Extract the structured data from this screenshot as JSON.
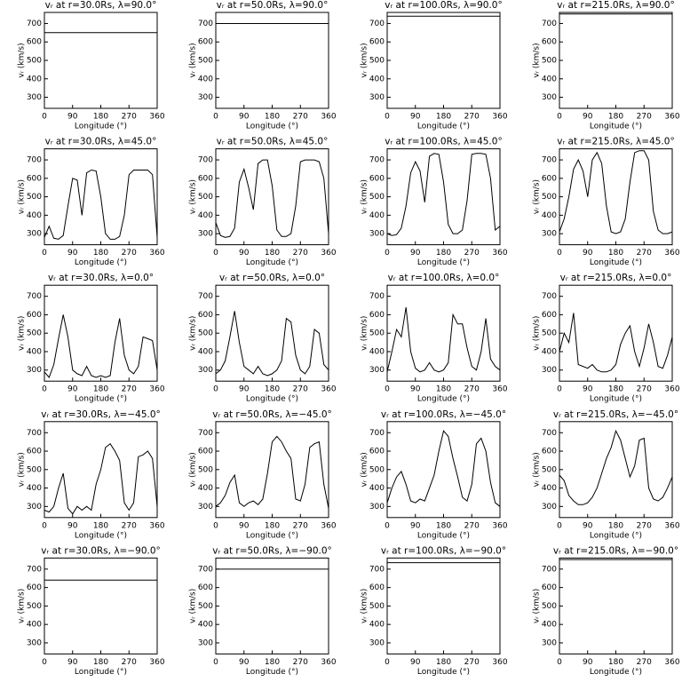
{
  "chart_data": [
    {
      "type": "line",
      "title": "vᵣ at r=30.0Rs, λ=90.0°",
      "xlabel": "Longitude (°)",
      "ylabel": "vᵣ (km/s)",
      "x": [
        0,
        360
      ],
      "values": [
        650,
        650
      ],
      "color": "#000000",
      "xlim": [
        0,
        360
      ],
      "ylim": [
        240,
        760
      ],
      "xticks": [
        0,
        90,
        180,
        270,
        360
      ],
      "yticks": [
        300,
        400,
        500,
        600,
        700
      ]
    },
    {
      "type": "line",
      "title": "vᵣ at r=50.0Rs, λ=90.0°",
      "xlabel": "Longitude (°)",
      "ylabel": "vᵣ (km/s)",
      "x": [
        0,
        360
      ],
      "values": [
        700,
        700
      ],
      "color": "#000000",
      "xlim": [
        0,
        360
      ],
      "ylim": [
        240,
        760
      ],
      "xticks": [
        0,
        90,
        180,
        270,
        360
      ],
      "yticks": [
        300,
        400,
        500,
        600,
        700
      ]
    },
    {
      "type": "line",
      "title": "vᵣ at r=100.0Rs, λ=90.0°",
      "xlabel": "Longitude (°)",
      "ylabel": "vᵣ (km/s)",
      "x": [
        0,
        360
      ],
      "values": [
        740,
        740
      ],
      "color": "#000000",
      "xlim": [
        0,
        360
      ],
      "ylim": [
        240,
        760
      ],
      "xticks": [
        0,
        90,
        180,
        270,
        360
      ],
      "yticks": [
        300,
        400,
        500,
        600,
        700
      ]
    },
    {
      "type": "line",
      "title": "vᵣ at r=215.0Rs, λ=90.0°",
      "xlabel": "Longitude (°)",
      "ylabel": "vᵣ (km/s)",
      "x": [
        0,
        360
      ],
      "values": [
        752,
        752
      ],
      "color": "#000000",
      "xlim": [
        0,
        360
      ],
      "ylim": [
        240,
        760
      ],
      "xticks": [
        0,
        90,
        180,
        270,
        360
      ],
      "yticks": [
        300,
        400,
        500,
        600,
        700
      ]
    },
    {
      "type": "line",
      "title": "vᵣ at r=30.0Rs, λ=45.0°",
      "xlabel": "Longitude (°)",
      "ylabel": "vᵣ (km/s)",
      "x": [
        0,
        15,
        30,
        45,
        60,
        75,
        90,
        105,
        120,
        135,
        150,
        165,
        180,
        195,
        210,
        225,
        240,
        255,
        270,
        285,
        300,
        315,
        330,
        345,
        360
      ],
      "values": [
        280,
        340,
        275,
        270,
        290,
        450,
        600,
        590,
        400,
        630,
        645,
        640,
        500,
        300,
        270,
        270,
        285,
        400,
        620,
        645,
        645,
        645,
        645,
        620,
        280
      ],
      "color": "#000000",
      "xlim": [
        0,
        360
      ],
      "ylim": [
        240,
        760
      ],
      "xticks": [
        0,
        90,
        180,
        270,
        360
      ],
      "yticks": [
        300,
        400,
        500,
        600,
        700
      ]
    },
    {
      "type": "line",
      "title": "vᵣ at r=50.0Rs, λ=45.0°",
      "xlabel": "Longitude (°)",
      "ylabel": "vᵣ (km/s)",
      "x": [
        0,
        15,
        30,
        45,
        60,
        75,
        90,
        105,
        120,
        135,
        150,
        165,
        180,
        195,
        210,
        225,
        240,
        255,
        270,
        285,
        300,
        315,
        330,
        345,
        360
      ],
      "values": [
        360,
        290,
        280,
        285,
        330,
        580,
        650,
        550,
        430,
        680,
        700,
        700,
        560,
        320,
        285,
        285,
        300,
        450,
        690,
        700,
        700,
        700,
        690,
        600,
        300
      ],
      "color": "#000000",
      "xlim": [
        0,
        360
      ],
      "ylim": [
        240,
        760
      ],
      "xticks": [
        0,
        90,
        180,
        270,
        360
      ],
      "yticks": [
        300,
        400,
        500,
        600,
        700
      ]
    },
    {
      "type": "line",
      "title": "vᵣ at r=100.0Rs, λ=45.0°",
      "xlabel": "Longitude (°)",
      "ylabel": "vᵣ (km/s)",
      "x": [
        0,
        15,
        30,
        45,
        60,
        75,
        90,
        105,
        120,
        135,
        150,
        165,
        180,
        195,
        210,
        225,
        240,
        255,
        270,
        285,
        300,
        315,
        330,
        345,
        360
      ],
      "values": [
        300,
        290,
        295,
        330,
        450,
        630,
        690,
        640,
        470,
        720,
        735,
        730,
        580,
        350,
        300,
        300,
        320,
        480,
        730,
        735,
        735,
        730,
        600,
        320,
        340
      ],
      "color": "#000000",
      "xlim": [
        0,
        360
      ],
      "ylim": [
        240,
        760
      ],
      "xticks": [
        0,
        90,
        180,
        270,
        360
      ],
      "yticks": [
        300,
        400,
        500,
        600,
        700
      ]
    },
    {
      "type": "line",
      "title": "vᵣ at r=215.0Rs, λ=45.0°",
      "xlabel": "Longitude (°)",
      "ylabel": "vᵣ (km/s)",
      "x": [
        0,
        15,
        30,
        45,
        60,
        75,
        90,
        105,
        120,
        135,
        150,
        165,
        180,
        195,
        210,
        225,
        240,
        255,
        270,
        285,
        300,
        315,
        330,
        345,
        360
      ],
      "values": [
        310,
        380,
        500,
        650,
        700,
        640,
        500,
        700,
        740,
        680,
        450,
        310,
        300,
        310,
        380,
        580,
        740,
        750,
        750,
        700,
        420,
        320,
        300,
        300,
        310
      ],
      "color": "#000000",
      "xlim": [
        0,
        360
      ],
      "ylim": [
        240,
        760
      ],
      "xticks": [
        0,
        90,
        180,
        270,
        360
      ],
      "yticks": [
        300,
        400,
        500,
        600,
        700
      ]
    },
    {
      "type": "line",
      "title": "vᵣ at r=30.0Rs, λ=0.0°",
      "xlabel": "Longitude (°)",
      "ylabel": "vᵣ (km/s)",
      "x": [
        0,
        15,
        30,
        45,
        60,
        75,
        90,
        105,
        120,
        135,
        150,
        165,
        180,
        195,
        210,
        225,
        240,
        255,
        270,
        285,
        300,
        315,
        330,
        345,
        360
      ],
      "values": [
        290,
        260,
        330,
        470,
        600,
        480,
        300,
        280,
        270,
        320,
        270,
        260,
        270,
        260,
        270,
        450,
        580,
        380,
        300,
        280,
        320,
        480,
        470,
        460,
        300
      ],
      "color": "#000000",
      "xlim": [
        0,
        360
      ],
      "ylim": [
        240,
        760
      ],
      "xticks": [
        0,
        90,
        180,
        270,
        360
      ],
      "yticks": [
        300,
        400,
        500,
        600,
        700
      ]
    },
    {
      "type": "line",
      "title": "vᵣ at r=50.0Rs, λ=0.0°",
      "xlabel": "Longitude (°)",
      "ylabel": "vᵣ (km/s)",
      "x": [
        0,
        15,
        30,
        45,
        60,
        75,
        90,
        105,
        120,
        135,
        150,
        165,
        180,
        195,
        210,
        225,
        240,
        255,
        270,
        285,
        300,
        315,
        330,
        345,
        360
      ],
      "values": [
        280,
        300,
        350,
        480,
        620,
        450,
        320,
        300,
        280,
        320,
        280,
        270,
        280,
        300,
        350,
        580,
        560,
        380,
        300,
        280,
        320,
        520,
        500,
        330,
        300
      ],
      "color": "#000000",
      "xlim": [
        0,
        360
      ],
      "ylim": [
        240,
        760
      ],
      "xticks": [
        0,
        90,
        180,
        270,
        360
      ],
      "yticks": [
        300,
        400,
        500,
        600,
        700
      ]
    },
    {
      "type": "line",
      "title": "vᵣ at r=100.0Rs, λ=0.0°",
      "xlabel": "Longitude (°)",
      "ylabel": "vᵣ (km/s)",
      "x": [
        0,
        15,
        30,
        45,
        60,
        75,
        90,
        105,
        120,
        135,
        150,
        165,
        180,
        195,
        210,
        225,
        240,
        255,
        270,
        285,
        300,
        315,
        330,
        345,
        360
      ],
      "values": [
        290,
        400,
        520,
        480,
        640,
        400,
        310,
        290,
        300,
        340,
        300,
        290,
        300,
        340,
        600,
        550,
        550,
        420,
        320,
        300,
        400,
        580,
        360,
        320,
        300
      ],
      "color": "#000000",
      "xlim": [
        0,
        360
      ],
      "ylim": [
        240,
        760
      ],
      "xticks": [
        0,
        90,
        180,
        270,
        360
      ],
      "yticks": [
        300,
        400,
        500,
        600,
        700
      ]
    },
    {
      "type": "line",
      "title": "vᵣ at r=215.0Rs, λ=0.0°",
      "xlabel": "Longitude (°)",
      "ylabel": "vᵣ (km/s)",
      "x": [
        0,
        15,
        30,
        45,
        60,
        75,
        90,
        105,
        120,
        135,
        150,
        165,
        180,
        195,
        210,
        225,
        240,
        255,
        270,
        285,
        300,
        315,
        330,
        345,
        360
      ],
      "values": [
        400,
        500,
        450,
        610,
        330,
        320,
        310,
        330,
        300,
        290,
        290,
        300,
        330,
        440,
        500,
        540,
        400,
        320,
        420,
        550,
        450,
        320,
        310,
        380,
        480
      ],
      "color": "#000000",
      "xlim": [
        0,
        360
      ],
      "ylim": [
        240,
        760
      ],
      "xticks": [
        0,
        90,
        180,
        270,
        360
      ],
      "yticks": [
        300,
        400,
        500,
        600,
        700
      ]
    },
    {
      "type": "line",
      "title": "vᵣ at r=30.0Rs, λ=−45.0°",
      "xlabel": "Longitude (°)",
      "ylabel": "vᵣ (km/s)",
      "x": [
        0,
        15,
        30,
        45,
        60,
        75,
        90,
        105,
        120,
        135,
        150,
        165,
        180,
        195,
        210,
        225,
        240,
        255,
        270,
        285,
        300,
        315,
        330,
        345,
        360
      ],
      "values": [
        280,
        270,
        300,
        400,
        480,
        290,
        260,
        300,
        280,
        300,
        280,
        420,
        500,
        620,
        640,
        600,
        550,
        320,
        280,
        320,
        570,
        580,
        600,
        560,
        300
      ],
      "color": "#000000",
      "xlim": [
        0,
        360
      ],
      "ylim": [
        240,
        760
      ],
      "xticks": [
        0,
        90,
        180,
        270,
        360
      ],
      "yticks": [
        300,
        400,
        500,
        600,
        700
      ]
    },
    {
      "type": "line",
      "title": "vᵣ at r=50.0Rs, λ=−45.0°",
      "xlabel": "Longitude (°)",
      "ylabel": "vᵣ (km/s)",
      "x": [
        0,
        15,
        30,
        45,
        60,
        75,
        90,
        105,
        120,
        135,
        150,
        165,
        180,
        195,
        210,
        225,
        240,
        255,
        270,
        285,
        300,
        315,
        330,
        345,
        360
      ],
      "values": [
        300,
        320,
        360,
        430,
        470,
        320,
        300,
        320,
        330,
        310,
        340,
        480,
        650,
        680,
        650,
        600,
        560,
        340,
        330,
        420,
        620,
        640,
        650,
        420,
        290
      ],
      "color": "#000000",
      "xlim": [
        0,
        360
      ],
      "ylim": [
        240,
        760
      ],
      "xticks": [
        0,
        90,
        180,
        270,
        360
      ],
      "yticks": [
        300,
        400,
        500,
        600,
        700
      ]
    },
    {
      "type": "line",
      "title": "vᵣ at r=100.0Rs, λ=−45.0°",
      "xlabel": "Longitude (°)",
      "ylabel": "vᵣ (km/s)",
      "x": [
        0,
        15,
        30,
        45,
        60,
        75,
        90,
        105,
        120,
        135,
        150,
        165,
        180,
        195,
        210,
        225,
        240,
        255,
        270,
        285,
        300,
        315,
        330,
        345,
        360
      ],
      "values": [
        320,
        400,
        460,
        490,
        420,
        330,
        320,
        340,
        330,
        400,
        470,
        600,
        710,
        680,
        560,
        460,
        350,
        330,
        420,
        640,
        670,
        600,
        430,
        320,
        300
      ],
      "color": "#000000",
      "xlim": [
        0,
        360
      ],
      "ylim": [
        240,
        760
      ],
      "xticks": [
        0,
        90,
        180,
        270,
        360
      ],
      "yticks": [
        300,
        400,
        500,
        600,
        700
      ]
    },
    {
      "type": "line",
      "title": "vᵣ at r=215.0Rs, λ=−45.0°",
      "xlabel": "Longitude (°)",
      "ylabel": "vᵣ (km/s)",
      "x": [
        0,
        15,
        30,
        45,
        60,
        75,
        90,
        105,
        120,
        135,
        150,
        165,
        180,
        195,
        210,
        225,
        240,
        255,
        270,
        285,
        300,
        315,
        330,
        345,
        360
      ],
      "values": [
        470,
        440,
        360,
        330,
        310,
        310,
        320,
        350,
        400,
        480,
        560,
        620,
        710,
        660,
        560,
        460,
        520,
        660,
        670,
        400,
        340,
        330,
        350,
        400,
        460
      ],
      "color": "#000000",
      "xlim": [
        0,
        360
      ],
      "ylim": [
        240,
        760
      ],
      "xticks": [
        0,
        90,
        180,
        270,
        360
      ],
      "yticks": [
        300,
        400,
        500,
        600,
        700
      ]
    },
    {
      "type": "line",
      "title": "vᵣ at r=30.0Rs, λ=−90.0°",
      "xlabel": "Longitude (°)",
      "ylabel": "vᵣ (km/s)",
      "x": [
        0,
        360
      ],
      "values": [
        640,
        640
      ],
      "color": "#000000",
      "xlim": [
        0,
        360
      ],
      "ylim": [
        240,
        760
      ],
      "xticks": [
        0,
        90,
        180,
        270,
        360
      ],
      "yticks": [
        300,
        400,
        500,
        600,
        700
      ]
    },
    {
      "type": "line",
      "title": "vᵣ at r=50.0Rs, λ=−90.0°",
      "xlabel": "Longitude (°)",
      "ylabel": "vᵣ (km/s)",
      "x": [
        0,
        360
      ],
      "values": [
        700,
        700
      ],
      "color": "#000000",
      "xlim": [
        0,
        360
      ],
      "ylim": [
        240,
        760
      ],
      "xticks": [
        0,
        90,
        180,
        270,
        360
      ],
      "yticks": [
        300,
        400,
        500,
        600,
        700
      ]
    },
    {
      "type": "line",
      "title": "vᵣ at r=100.0Rs, λ=−90.0°",
      "xlabel": "Longitude (°)",
      "ylabel": "vᵣ (km/s)",
      "x": [
        0,
        360
      ],
      "values": [
        735,
        735
      ],
      "color": "#000000",
      "xlim": [
        0,
        360
      ],
      "ylim": [
        240,
        760
      ],
      "xticks": [
        0,
        90,
        180,
        270,
        360
      ],
      "yticks": [
        300,
        400,
        500,
        600,
        700
      ]
    },
    {
      "type": "line",
      "title": "vᵣ at r=215.0Rs, λ=−90.0°",
      "xlabel": "Longitude (°)",
      "ylabel": "vᵣ (km/s)",
      "x": [
        0,
        360
      ],
      "values": [
        752,
        752
      ],
      "color": "#000000",
      "xlim": [
        0,
        360
      ],
      "ylim": [
        240,
        760
      ],
      "xticks": [
        0,
        90,
        180,
        270,
        360
      ],
      "yticks": [
        300,
        400,
        500,
        600,
        700
      ]
    }
  ]
}
